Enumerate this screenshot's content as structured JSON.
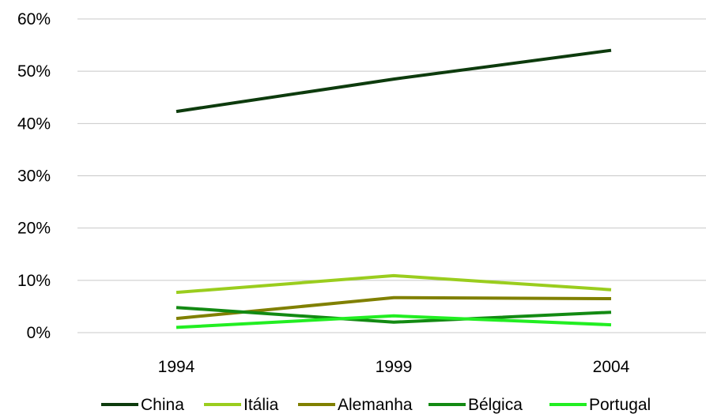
{
  "chart_data": {
    "type": "line",
    "x": [
      "1994",
      "1999",
      "2004"
    ],
    "series": [
      {
        "name": "China",
        "values": [
          42.3,
          48.5,
          54.0
        ],
        "color": "#0d3b0d"
      },
      {
        "name": "Itália",
        "values": [
          7.7,
          10.9,
          8.2
        ],
        "color": "#9acd1e"
      },
      {
        "name": "Alemanha",
        "values": [
          2.7,
          6.7,
          6.5
        ],
        "color": "#808000"
      },
      {
        "name": "Bélgica",
        "values": [
          4.8,
          2.0,
          3.9
        ],
        "color": "#138a13"
      },
      {
        "name": "Portugal",
        "values": [
          1.0,
          3.2,
          1.5
        ],
        "color": "#22ee22"
      }
    ],
    "y_ticks": [
      "0%",
      "10%",
      "20%",
      "30%",
      "40%",
      "50%",
      "60%"
    ],
    "ylim": [
      0,
      60
    ],
    "grid": true,
    "legend_position": "bottom"
  }
}
